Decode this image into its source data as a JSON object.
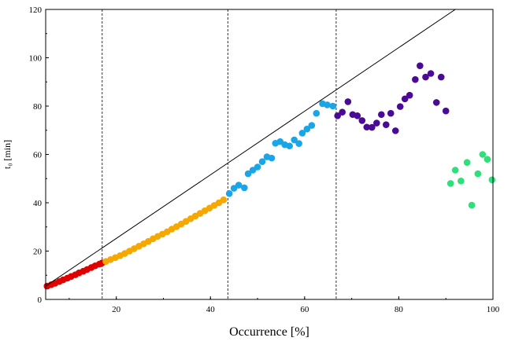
{
  "chart_data": {
    "type": "scatter",
    "xlabel": "Occurrence [%]",
    "ylabel": "t₀ [min]",
    "xlim": [
      5,
      100
    ],
    "ylim": [
      0,
      120
    ],
    "xticks": [
      20,
      40,
      60,
      80,
      100
    ],
    "yticks": [
      0,
      20,
      40,
      60,
      80,
      100,
      120
    ],
    "grid": false,
    "vlines": [
      17,
      43.7,
      66.7
    ],
    "fit_line": {
      "x": [
        5,
        92
      ],
      "y": [
        5.5,
        120
      ]
    },
    "series": [
      {
        "color": "#e00000",
        "points": [
          [
            5.3,
            5.5
          ],
          [
            6.2,
            6.1
          ],
          [
            7.0,
            6.7
          ],
          [
            7.9,
            7.4
          ],
          [
            8.7,
            8.1
          ],
          [
            9.6,
            8.8
          ],
          [
            10.4,
            9.5
          ],
          [
            11.3,
            10.2
          ],
          [
            12.1,
            11.0
          ],
          [
            13.0,
            11.7
          ],
          [
            13.8,
            12.4
          ],
          [
            14.7,
            13.2
          ],
          [
            15.5,
            13.9
          ],
          [
            16.4,
            14.6
          ],
          [
            17.0,
            15.1
          ]
        ]
      },
      {
        "color": "#f5a800",
        "points": [
          [
            17.8,
            15.7
          ],
          [
            18.8,
            16.5
          ],
          [
            19.8,
            17.3
          ],
          [
            20.8,
            18.1
          ],
          [
            21.8,
            19.0
          ],
          [
            22.8,
            20.0
          ],
          [
            23.8,
            21.0
          ],
          [
            24.8,
            22.0
          ],
          [
            25.8,
            23.0
          ],
          [
            26.8,
            24.0
          ],
          [
            27.8,
            25.1
          ],
          [
            28.8,
            26.1
          ],
          [
            29.8,
            27.0
          ],
          [
            30.8,
            28.0
          ],
          [
            31.8,
            29.1
          ],
          [
            32.8,
            30.1
          ],
          [
            33.8,
            31.2
          ],
          [
            34.8,
            32.3
          ],
          [
            35.8,
            33.4
          ],
          [
            36.8,
            34.5
          ],
          [
            37.8,
            35.6
          ],
          [
            38.8,
            36.7
          ],
          [
            39.8,
            37.8
          ],
          [
            40.8,
            38.9
          ],
          [
            41.8,
            40.0
          ],
          [
            42.8,
            41.2
          ]
        ]
      },
      {
        "color": "#1aa6e6",
        "points": [
          [
            44.0,
            43.8
          ],
          [
            45.0,
            46.0
          ],
          [
            46.0,
            47.3
          ],
          [
            47.2,
            46.2
          ],
          [
            48.0,
            52.0
          ],
          [
            49.0,
            53.5
          ],
          [
            50.0,
            54.8
          ],
          [
            51.0,
            57.0
          ],
          [
            52.0,
            59.0
          ],
          [
            53.0,
            58.5
          ],
          [
            53.8,
            64.6
          ],
          [
            54.8,
            65.3
          ],
          [
            55.8,
            64.0
          ],
          [
            56.8,
            63.5
          ],
          [
            57.8,
            66.0
          ],
          [
            58.8,
            64.5
          ],
          [
            59.5,
            68.8
          ],
          [
            60.5,
            70.5
          ],
          [
            61.5,
            72.0
          ],
          [
            62.5,
            77.0
          ],
          [
            63.8,
            81.0
          ],
          [
            64.8,
            80.5
          ],
          [
            66.0,
            80.0
          ]
        ]
      },
      {
        "color": "#4b0a96",
        "points": [
          [
            67.0,
            76.0
          ],
          [
            68.0,
            77.5
          ],
          [
            69.2,
            81.8
          ],
          [
            70.2,
            76.5
          ],
          [
            71.2,
            76.0
          ],
          [
            72.2,
            74.0
          ],
          [
            73.2,
            71.3
          ],
          [
            74.3,
            71.2
          ],
          [
            75.3,
            73.0
          ],
          [
            76.3,
            76.5
          ],
          [
            77.3,
            72.3
          ],
          [
            78.3,
            77.0
          ],
          [
            79.3,
            69.8
          ],
          [
            80.3,
            79.8
          ],
          [
            81.3,
            83.0
          ],
          [
            82.3,
            84.5
          ],
          [
            83.5,
            91.0
          ],
          [
            84.5,
            96.7
          ],
          [
            85.7,
            92.0
          ],
          [
            86.8,
            93.5
          ],
          [
            88.0,
            81.5
          ],
          [
            89.0,
            92.0
          ],
          [
            90.0,
            78.0
          ]
        ]
      },
      {
        "color": "#2de07a",
        "points": [
          [
            91.0,
            48.0
          ],
          [
            92.0,
            53.5
          ],
          [
            93.2,
            49.0
          ],
          [
            94.5,
            56.7
          ],
          [
            95.5,
            39.0
          ],
          [
            96.8,
            52.0
          ],
          [
            97.8,
            60.0
          ],
          [
            98.8,
            58.0
          ],
          [
            99.8,
            49.5
          ]
        ]
      }
    ]
  }
}
